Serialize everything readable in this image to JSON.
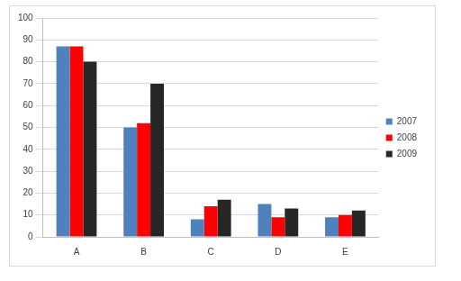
{
  "chart_data": {
    "type": "bar",
    "categories": [
      "A",
      "B",
      "C",
      "D",
      "E"
    ],
    "series": [
      {
        "name": "2007",
        "color": "#4f81bd",
        "values": [
          87,
          50,
          8,
          15,
          9
        ]
      },
      {
        "name": "2008",
        "color": "#ff0000",
        "values": [
          87,
          52,
          14,
          9,
          10
        ]
      },
      {
        "name": "2009",
        "color": "#262626",
        "values": [
          80,
          70,
          17,
          13,
          12
        ]
      }
    ],
    "ylim": [
      0,
      100
    ],
    "yticks": [
      0,
      10,
      20,
      30,
      40,
      50,
      60,
      70,
      80,
      90,
      100
    ],
    "grid": true,
    "legend": "right"
  }
}
